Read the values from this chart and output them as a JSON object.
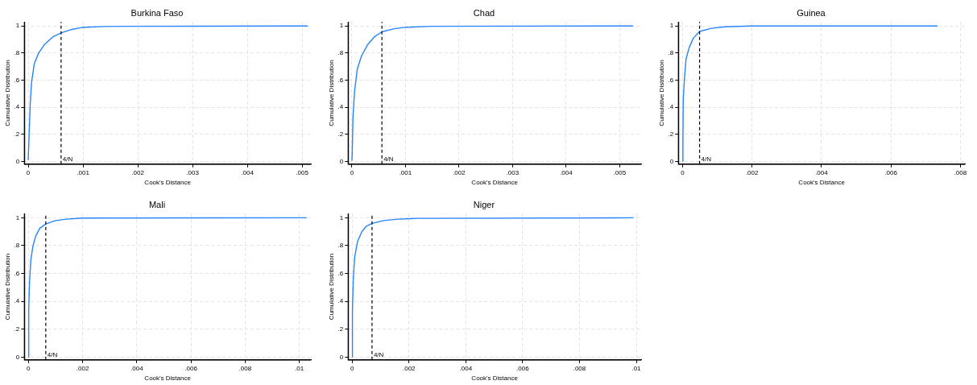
{
  "chart_data": [
    {
      "type": "line",
      "title": "Burkina Faso",
      "xlabel": "Cook's Distance",
      "ylabel": "Cumulative Distribution",
      "color": "#2684ff",
      "marker": "none",
      "line_style": "solid",
      "grid": true,
      "legend": false,
      "x": [
        0,
        1.5e-05,
        3.6e-05,
        6e-05,
        0.00011,
        0.00019,
        0.00029,
        0.00045,
        0.00061,
        0.0008,
        0.001,
        0.0014,
        0.0019,
        0.0051
      ],
      "values": [
        0.01,
        0.18,
        0.42,
        0.58,
        0.72,
        0.8,
        0.86,
        0.92,
        0.95,
        0.975,
        0.99,
        0.996,
        0.998,
        1
      ],
      "xlim": [
        -7e-05,
        0.00516
      ],
      "ylim": [
        -0.02,
        1.03
      ],
      "xticks": [
        {
          "value": 0,
          "label": "0"
        },
        {
          "value": 0.001,
          "label": ".001"
        },
        {
          "value": 0.002,
          "label": ".002"
        },
        {
          "value": 0.003,
          "label": ".003"
        },
        {
          "value": 0.004,
          "label": ".004"
        },
        {
          "value": 0.005,
          "label": ".005"
        }
      ],
      "yticks": [
        {
          "value": 0,
          "label": "0"
        },
        {
          "value": 0.2,
          "label": ".2"
        },
        {
          "value": 0.4,
          "label": ".4"
        },
        {
          "value": 0.6,
          "label": ".6"
        },
        {
          "value": 0.8,
          "label": ".8"
        },
        {
          "value": 1,
          "label": "1"
        }
      ],
      "ref_lines": [
        {
          "axis": "x",
          "value": 0.0006,
          "label": "4/N",
          "color": "#000000",
          "line_style": "dashed"
        }
      ]
    },
    {
      "type": "line",
      "title": "Chad",
      "xlabel": "Cook's Distance",
      "ylabel": "Cumulative Distribution",
      "color": "#2684ff",
      "marker": "none",
      "line_style": "solid",
      "grid": true,
      "legend": false,
      "x": [
        0,
        5e-06,
        2e-05,
        5e-05,
        0.0001,
        0.00018,
        0.00029,
        0.00042,
        0.00056,
        0.00079,
        0.001,
        0.0015,
        0.00525
      ],
      "values": [
        0.005,
        0.05,
        0.33,
        0.52,
        0.68,
        0.78,
        0.86,
        0.92,
        0.957,
        0.98,
        0.99,
        0.998,
        1
      ],
      "xlim": [
        -7e-05,
        0.0054
      ],
      "ylim": [
        -0.02,
        1.03
      ],
      "xticks": [
        {
          "value": 0,
          "label": "0"
        },
        {
          "value": 0.001,
          "label": ".001"
        },
        {
          "value": 0.002,
          "label": ".002"
        },
        {
          "value": 0.003,
          "label": ".003"
        },
        {
          "value": 0.004,
          "label": ".004"
        },
        {
          "value": 0.005,
          "label": ".005"
        }
      ],
      "yticks": [
        {
          "value": 0,
          "label": "0"
        },
        {
          "value": 0.2,
          "label": ".2"
        },
        {
          "value": 0.4,
          "label": ".4"
        },
        {
          "value": 0.6,
          "label": ".6"
        },
        {
          "value": 0.8,
          "label": ".8"
        },
        {
          "value": 1,
          "label": "1"
        }
      ],
      "ref_lines": [
        {
          "axis": "x",
          "value": 0.00056,
          "label": "4/N",
          "color": "#000000",
          "line_style": "dashed"
        }
      ]
    },
    {
      "type": "line",
      "title": "Guinea",
      "xlabel": "Cook's Distance",
      "ylabel": "Cumulative Distribution",
      "color": "#2684ff",
      "marker": "none",
      "line_style": "solid",
      "grid": true,
      "legend": false,
      "x": [
        0,
        1e-05,
        2e-05,
        6e-05,
        0.0001,
        0.00019,
        0.00031,
        0.00049,
        0.00083,
        0.00123,
        0.002,
        0.00734
      ],
      "values": [
        0,
        0.155,
        0.466,
        0.63,
        0.756,
        0.84,
        0.91,
        0.96,
        0.983,
        0.994,
        1,
        1
      ],
      "xlim": [
        -0.00012,
        0.00813
      ],
      "ylim": [
        -0.02,
        1.03
      ],
      "xticks": [
        {
          "value": 0,
          "label": "0"
        },
        {
          "value": 0.002,
          "label": ".002"
        },
        {
          "value": 0.004,
          "label": ".004"
        },
        {
          "value": 0.006,
          "label": ".006"
        },
        {
          "value": 0.008,
          "label": ".008"
        }
      ],
      "yticks": [
        {
          "value": 0,
          "label": "0"
        },
        {
          "value": 0.2,
          "label": ".2"
        },
        {
          "value": 0.4,
          "label": ".4"
        },
        {
          "value": 0.6,
          "label": ".6"
        },
        {
          "value": 0.8,
          "label": ".8"
        },
        {
          "value": 1,
          "label": "1"
        }
      ],
      "ref_lines": [
        {
          "axis": "x",
          "value": 0.00049,
          "label": "4/N",
          "color": "#000000",
          "line_style": "dashed"
        }
      ]
    },
    {
      "type": "line",
      "title": "Mali",
      "xlabel": "Cook's Distance",
      "ylabel": "Cumulative Distribution",
      "color": "#2684ff",
      "marker": "none",
      "line_style": "solid",
      "grid": true,
      "legend": false,
      "x": [
        0,
        1e-05,
        4e-05,
        9e-05,
        0.00017,
        0.00027,
        0.00042,
        0.00064,
        0.001,
        0.0014,
        0.002,
        0.01027
      ],
      "values": [
        0,
        0.335,
        0.54,
        0.7,
        0.8,
        0.87,
        0.925,
        0.955,
        0.98,
        0.99,
        0.998,
        1
      ],
      "xlim": [
        -0.00015,
        0.01043
      ],
      "ylim": [
        -0.02,
        1.03
      ],
      "xticks": [
        {
          "value": 0,
          "label": "0"
        },
        {
          "value": 0.002,
          "label": ".002"
        },
        {
          "value": 0.004,
          "label": ".004"
        },
        {
          "value": 0.006,
          "label": ".006"
        },
        {
          "value": 0.008,
          "label": ".008"
        },
        {
          "value": 0.01,
          "label": ".01"
        }
      ],
      "yticks": [
        {
          "value": 0,
          "label": "0"
        },
        {
          "value": 0.2,
          "label": ".2"
        },
        {
          "value": 0.4,
          "label": ".4"
        },
        {
          "value": 0.6,
          "label": ".6"
        },
        {
          "value": 0.8,
          "label": ".8"
        },
        {
          "value": 1,
          "label": "1"
        }
      ],
      "ref_lines": [
        {
          "axis": "x",
          "value": 0.00064,
          "label": "4/N",
          "color": "#000000",
          "line_style": "dashed"
        }
      ]
    },
    {
      "type": "line",
      "title": "Niger",
      "xlabel": "Cook's Distance",
      "ylabel": "Cumulative Distribution",
      "color": "#2684ff",
      "marker": "none",
      "line_style": "solid",
      "grid": true,
      "legend": false,
      "x": [
        0,
        1e-05,
        4e-05,
        9e-05,
        0.00019,
        0.00034,
        0.0005,
        0.0007,
        0.0011,
        0.0016,
        0.0023,
        0.0099
      ],
      "values": [
        0,
        0.335,
        0.56,
        0.72,
        0.83,
        0.9,
        0.94,
        0.96,
        0.98,
        0.99,
        0.996,
        1
      ],
      "xlim": [
        -0.00014,
        0.01017
      ],
      "ylim": [
        -0.02,
        1.03
      ],
      "xticks": [
        {
          "value": 0,
          "label": "0"
        },
        {
          "value": 0.002,
          "label": ".002"
        },
        {
          "value": 0.004,
          "label": ".004"
        },
        {
          "value": 0.006,
          "label": ".006"
        },
        {
          "value": 0.008,
          "label": ".008"
        },
        {
          "value": 0.01,
          "label": ".01"
        }
      ],
      "yticks": [
        {
          "value": 0,
          "label": "0"
        },
        {
          "value": 0.2,
          "label": ".2"
        },
        {
          "value": 0.4,
          "label": ".4"
        },
        {
          "value": 0.6,
          "label": ".6"
        },
        {
          "value": 0.8,
          "label": ".8"
        },
        {
          "value": 1,
          "label": "1"
        }
      ],
      "ref_lines": [
        {
          "axis": "x",
          "value": 0.0007,
          "label": "4/N",
          "color": "#000000",
          "line_style": "dashed"
        }
      ]
    }
  ]
}
